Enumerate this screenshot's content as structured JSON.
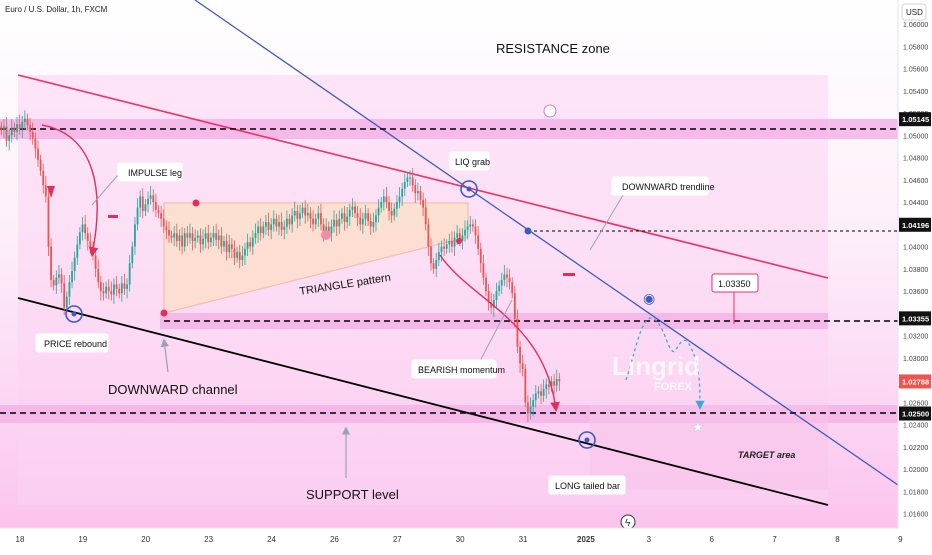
{
  "header": {
    "symbol_title": "Euro / U.S. Dollar, 1h, FXCM"
  },
  "price_scale": {
    "currency": "USD",
    "ticks": [
      "1.06000",
      "1.05800",
      "1.05600",
      "1.05400",
      "1.05200",
      "1.05000",
      "1.04800",
      "1.04600",
      "1.04400",
      "1.04200",
      "1.04000",
      "1.03800",
      "1.03600",
      "1.03400",
      "1.03200",
      "1.03000",
      "1.02800",
      "1.02600",
      "1.02400",
      "1.02200",
      "1.02000",
      "1.01800",
      "1.01600"
    ],
    "markers": [
      {
        "label": "1.05145",
        "value": 1.05145,
        "kind": "dark"
      },
      {
        "label": "1.04196",
        "value": 1.04196,
        "kind": "dark"
      },
      {
        "label": "1.03355",
        "value": 1.03355,
        "kind": "dark"
      },
      {
        "label": "1.02788",
        "value": 1.02788,
        "kind": "red"
      },
      {
        "label": "1.02500",
        "value": 1.025,
        "kind": "dark"
      }
    ]
  },
  "time_scale": {
    "ticks": [
      {
        "label": "18",
        "bar": 0
      },
      {
        "label": "19",
        "bar": 24
      },
      {
        "label": "20",
        "bar": 48
      },
      {
        "label": "23",
        "bar": 72
      },
      {
        "label": "24",
        "bar": 96
      },
      {
        "label": "26",
        "bar": 120
      },
      {
        "label": "27",
        "bar": 144
      },
      {
        "label": "30",
        "bar": 168
      },
      {
        "label": "31",
        "bar": 192
      },
      {
        "label": "2025",
        "bar": 216,
        "bold": true
      },
      {
        "label": "3",
        "bar": 240
      },
      {
        "label": "6",
        "bar": 264
      },
      {
        "label": "7",
        "bar": 288
      },
      {
        "label": "8",
        "bar": 312
      },
      {
        "label": "9",
        "bar": 336
      }
    ]
  },
  "annotations": {
    "resistance_zone": "RESISTANCE zone",
    "impulse_leg": "IMPULSE leg",
    "liq_grab": "LIQ grab",
    "downward_trendline": "DOWNWARD trendline",
    "triangle_pattern": "TRIANGLE pattern",
    "price_rebound": "PRICE rebound",
    "downward_channel": "DOWNWARD channel",
    "bearish_momentum": "BEARISH momentum",
    "target_area": "TARGET area",
    "support_level": "SUPPORT level",
    "long_tailed_bar": "LONG tailed bar",
    "price_callout": "1.03350"
  },
  "watermark": {
    "brand": "Lingrid",
    "sub": "FOREX"
  },
  "colors": {
    "bull": "#26a69a",
    "bear": "#ef5350",
    "zone": "#f3b3e6",
    "channel_fill": "#fbd3f3",
    "triangle_fill": "#fde0cf",
    "resistance_line": "#ef2f62",
    "trendline": "#3b5bbf",
    "support_line": "#000000",
    "arrow": "#e0305a",
    "projection": "#3aa8d8"
  },
  "chart_data": {
    "type": "candlestick",
    "title": "Euro / U.S. Dollar, 1h, FXCM",
    "y_unit": "USD",
    "ylim": [
      1.0148,
      1.0618
    ],
    "closes": [
      1.0505,
      1.0508,
      1.0495,
      1.05,
      1.0507,
      1.0503,
      1.051,
      1.0506,
      1.0512,
      1.0515,
      1.0509,
      1.0503,
      1.0497,
      1.0488,
      1.0478,
      1.0468,
      1.0455,
      1.0445,
      1.04,
      1.037,
      1.0365,
      1.0372,
      1.0375,
      1.0367,
      1.0345,
      1.0355,
      1.0368,
      1.0378,
      1.039,
      1.0402,
      1.0413,
      1.042,
      1.0412,
      1.0405,
      1.04,
      1.0392,
      1.038,
      1.0368,
      1.036,
      1.0358,
      1.0364,
      1.036,
      1.0357,
      1.0366,
      1.0362,
      1.0358,
      1.0367,
      1.0362,
      1.0366,
      1.0385,
      1.04,
      1.042,
      1.0435,
      1.0445,
      1.0432,
      1.0438,
      1.0443,
      1.0446,
      1.044,
      1.0433,
      1.043,
      1.0425,
      1.0418,
      1.0415,
      1.041,
      1.0408,
      1.0412,
      1.0405,
      1.041,
      1.04,
      1.0412,
      1.0408,
      1.0412,
      1.0405,
      1.0408,
      1.041,
      1.0402,
      1.0407,
      1.0412,
      1.0404,
      1.0408,
      1.0412,
      1.0406,
      1.041,
      1.04,
      1.0405,
      1.0395,
      1.0402,
      1.0398,
      1.039,
      1.0395,
      1.0388,
      1.0392,
      1.0398,
      1.0404,
      1.04,
      1.0408,
      1.0412,
      1.0418,
      1.0412,
      1.0418,
      1.0422,
      1.0415,
      1.042,
      1.0425,
      1.0418,
      1.0422,
      1.0415,
      1.0418,
      1.0425,
      1.042,
      1.0428,
      1.0432,
      1.0425,
      1.043,
      1.0435,
      1.0428,
      1.043,
      1.0425,
      1.042,
      1.0425,
      1.043,
      1.042,
      1.0413,
      1.0418,
      1.0412,
      1.0418,
      1.0424,
      1.0418,
      1.0425,
      1.043,
      1.0422,
      1.0427,
      1.0433,
      1.0436,
      1.043,
      1.0426,
      1.042,
      1.0425,
      1.043,
      1.0423,
      1.0418,
      1.0422,
      1.0428,
      1.0435,
      1.044,
      1.0445,
      1.044,
      1.0432,
      1.0428,
      1.0434,
      1.044,
      1.0445,
      1.0452,
      1.0458,
      1.0462,
      1.0462,
      1.0455,
      1.0448,
      1.045,
      1.0442,
      1.0435,
      1.042,
      1.04,
      1.0385,
      1.038,
      1.0388,
      1.0395,
      1.04,
      1.0398,
      1.0402,
      1.0405,
      1.04,
      1.0408,
      1.0412,
      1.0405,
      1.041,
      1.0415,
      1.0418,
      1.042,
      1.0418,
      1.041,
      1.0398,
      1.0385,
      1.0372,
      1.036,
      1.035,
      1.0345,
      1.0352,
      1.036,
      1.0365,
      1.037,
      1.0375,
      1.0372,
      1.0368,
      1.0358,
      1.0335,
      1.031,
      1.0295,
      1.029,
      1.026,
      1.025,
      1.0256,
      1.0262,
      1.0268,
      1.027,
      1.0266,
      1.0272,
      1.0276,
      1.0274,
      1.0279,
      1.0275,
      1.0281,
      1.0279
    ],
    "x_tick_labels": [
      "18",
      "19",
      "20",
      "23",
      "24",
      "26",
      "27",
      "30",
      "31",
      "2025",
      "3",
      "6",
      "7",
      "8",
      "9"
    ],
    "y_tick_labels": [
      "1.06000",
      "1.05800",
      "1.05600",
      "1.05400",
      "1.05200",
      "1.05000",
      "1.04800",
      "1.04600",
      "1.04400",
      "1.04200",
      "1.04000",
      "1.03800",
      "1.03600",
      "1.03400",
      "1.03200",
      "1.03000",
      "1.02800",
      "1.02600",
      "1.02400",
      "1.02200",
      "1.02000",
      "1.01800",
      "1.01600"
    ],
    "levels": {
      "resistance": 1.05145,
      "mid": 1.04196,
      "breakout": 1.03355,
      "last_price": 1.02788,
      "support": 1.025
    },
    "zones": [
      {
        "name": "RESISTANCE zone",
        "from": 1.0504,
        "to": 1.0522
      },
      {
        "name": "breakout zone",
        "from": 1.0328,
        "to": 1.0341
      },
      {
        "name": "SUPPORT level",
        "from": 1.0243,
        "to": 1.0258
      }
    ]
  }
}
